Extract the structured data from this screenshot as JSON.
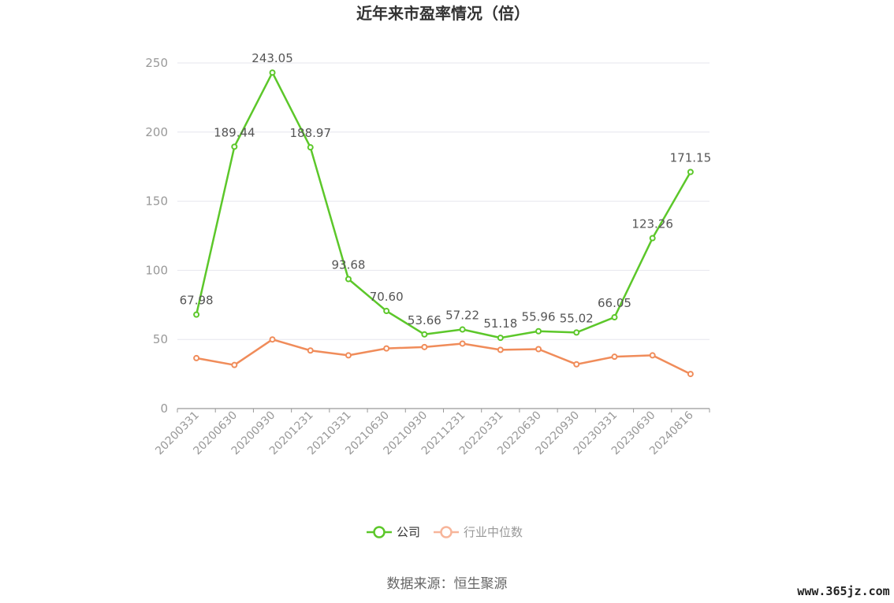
{
  "chart_data": {
    "type": "line",
    "title": "近年来市盈率情况（倍）",
    "categories": [
      "20200331",
      "20200630",
      "20200930",
      "20201231",
      "20210331",
      "20210630",
      "20210930",
      "20211231",
      "20220331",
      "20220630",
      "20220930",
      "20230331",
      "20230630",
      "20240816"
    ],
    "series": [
      {
        "name": "公司",
        "color": "#5cc72a",
        "values": [
          67.98,
          189.44,
          243.05,
          188.97,
          93.68,
          70.6,
          53.66,
          57.22,
          51.18,
          55.96,
          55.02,
          66.05,
          123.26,
          171.15
        ],
        "labels": [
          "67.98",
          "189.44",
          "243.05",
          "188.97",
          "93.68",
          "70.60",
          "53.66",
          "57.22",
          "51.18",
          "55.96",
          "55.02",
          "66.05",
          "123.26",
          "171.15"
        ]
      },
      {
        "name": "行业中位数",
        "color": "#f08c5a",
        "values": [
          36.5,
          31.5,
          50,
          42,
          38.5,
          43.5,
          44.5,
          47,
          42.5,
          43,
          32,
          37.5,
          38.5,
          25
        ]
      }
    ],
    "ylim": [
      0,
      250
    ],
    "yticks": [
      "0",
      "50",
      "100",
      "150",
      "200",
      "250"
    ],
    "grid": true,
    "legend_position": "bottom"
  },
  "source": "数据来源：恒生聚源",
  "watermark": "www.365jz.com"
}
